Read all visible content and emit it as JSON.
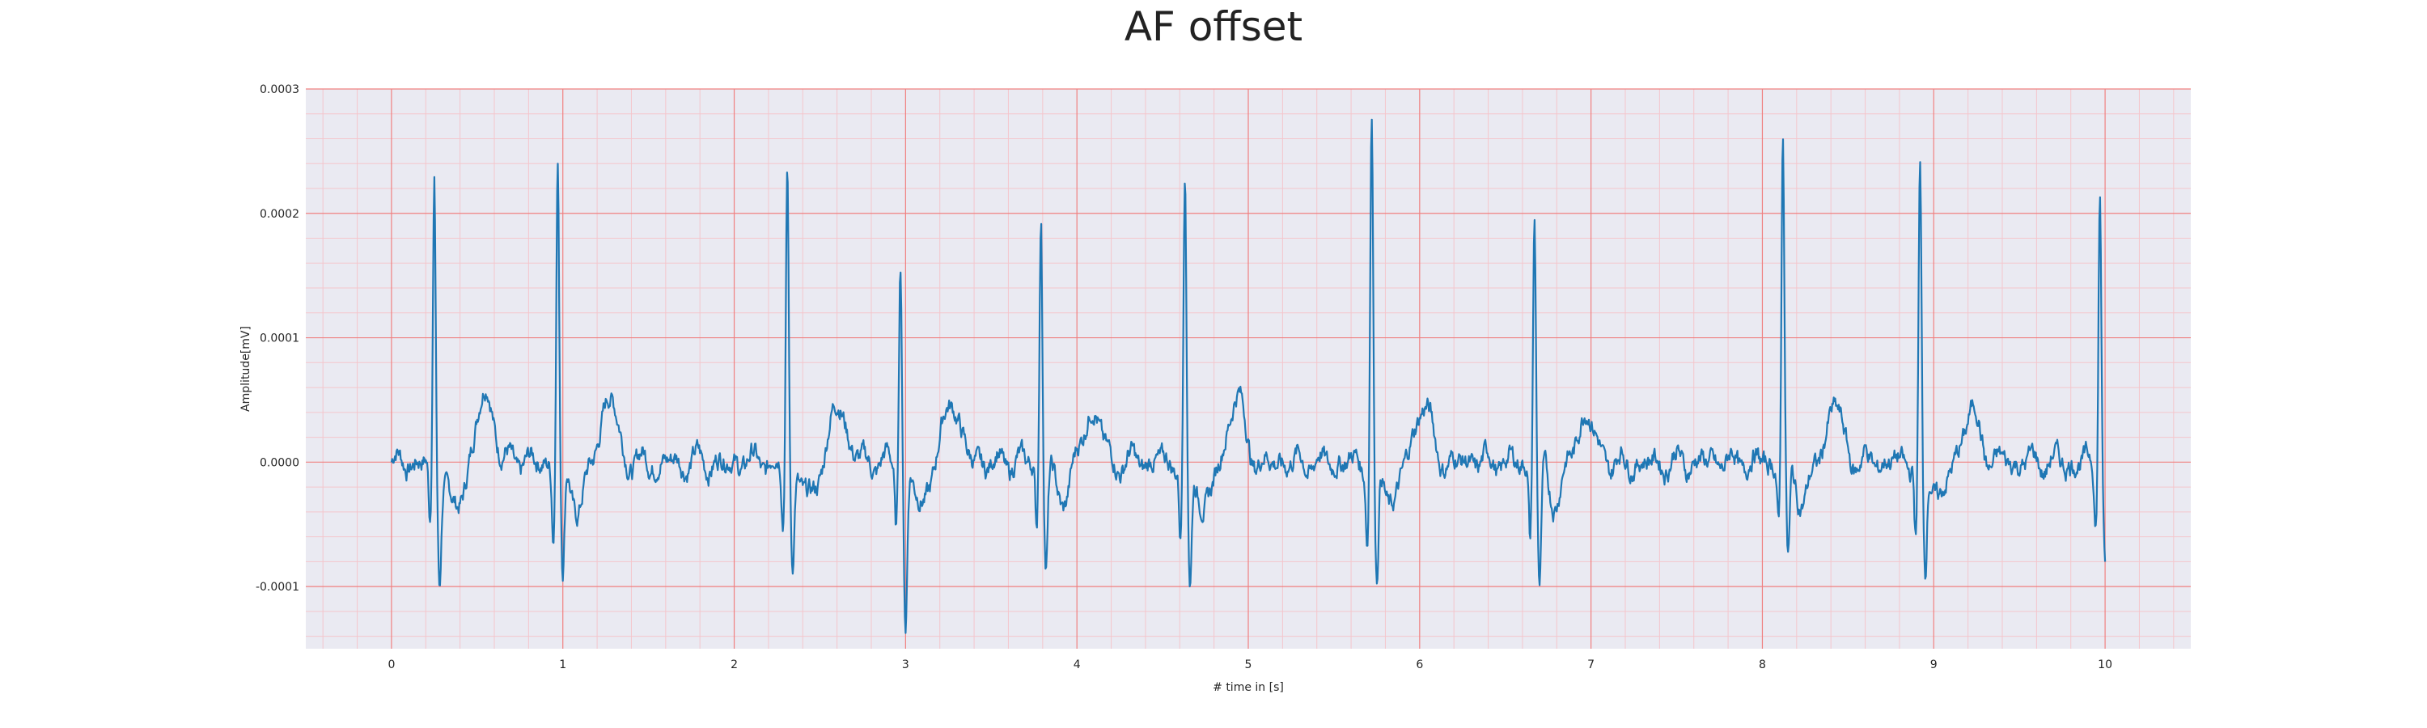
{
  "chart_data": {
    "type": "line",
    "title": "AF offset",
    "xlabel": "# time in [s]",
    "ylabel": "Amplitude[mV]",
    "xlim": [
      -0.5,
      10.5
    ],
    "ylim": [
      -0.00015,
      0.0003
    ],
    "xticks": [
      0,
      1,
      2,
      3,
      4,
      5,
      6,
      7,
      8,
      9,
      10
    ],
    "yticks": [
      -0.0001,
      0.0,
      0.0001,
      0.0002,
      0.0003
    ],
    "ytick_labels": [
      "-0.0001",
      "0.0000",
      "0.0001",
      "0.0002",
      "0.0003"
    ],
    "grid": "major red lines and minor pink lines",
    "colors": {
      "background": "#eaeaf2",
      "major_grid": "#f08080",
      "minor_grid": "#f4c6cc",
      "line": "#1f77b4"
    },
    "series": [
      {
        "beats": [
          {
            "t": 0.25,
            "r": 0.000225,
            "q": -5e-05,
            "s": -9e-05,
            "amp": 1.0
          },
          {
            "t": 0.97,
            "r": 0.000245,
            "q": -6e-05,
            "s": -9e-05,
            "amp": 0.9
          },
          {
            "t": 2.31,
            "r": 0.000238,
            "q": -5e-05,
            "s": -8e-05,
            "amp": 0.8
          },
          {
            "t": 2.97,
            "r": 0.000168,
            "q": -5e-05,
            "s": -0.00013,
            "amp": 0.85
          },
          {
            "t": 3.79,
            "r": 0.0002,
            "q": -5e-05,
            "s": -8e-05,
            "amp": 0.75
          },
          {
            "t": 4.63,
            "r": 0.000233,
            "q": -6e-05,
            "s": -0.0001,
            "amp": 0.9
          },
          {
            "t": 5.72,
            "r": 0.000283,
            "q": -6e-05,
            "s": -0.0001,
            "amp": 0.8
          },
          {
            "t": 6.67,
            "r": 0.000197,
            "q": -6e-05,
            "s": -0.0001,
            "amp": 0.7
          },
          {
            "t": 8.12,
            "r": 0.000265,
            "q": -5e-05,
            "s": -8e-05,
            "amp": 0.75
          },
          {
            "t": 8.92,
            "r": 0.00023,
            "q": -6e-05,
            "s": -9e-05,
            "amp": 0.7
          },
          {
            "t": 9.97,
            "r": 0.000225,
            "q": -5e-05,
            "s": -8e-05,
            "amp": 0.6
          }
        ],
        "t_range": [
          0,
          10
        ]
      }
    ]
  }
}
